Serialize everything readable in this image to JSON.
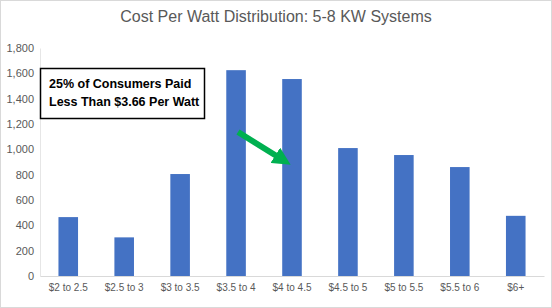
{
  "chart_data": {
    "type": "bar",
    "title": "Cost Per Watt Distribution: 5-8 KW Systems",
    "categories": [
      "$2 to 2.5",
      "$2.5 to 3",
      "$3 to 3.5",
      "$3.5 to 4",
      "$4 to 4.5",
      "$4.5 to 5",
      "$5 to 5.5",
      "$5.5 to 6",
      "$6+"
    ],
    "values": [
      465,
      305,
      805,
      1625,
      1555,
      1010,
      955,
      860,
      475
    ],
    "color": "#4472c4",
    "ylim": [
      0,
      1800
    ],
    "yticks": [
      0,
      200,
      400,
      600,
      800,
      {
        "value": 1000,
        "label": "1,000"
      },
      {
        "value": 1200,
        "label": "1,200"
      },
      {
        "value": 1400,
        "label": "1,400"
      },
      {
        "value": 1600,
        "label": "1,600"
      },
      {
        "value": 1800,
        "label": "1,800"
      }
    ],
    "grid": false,
    "annotation": [
      "25% of Consumers Paid",
      "Less Than $3.66 Per Watt"
    ]
  }
}
